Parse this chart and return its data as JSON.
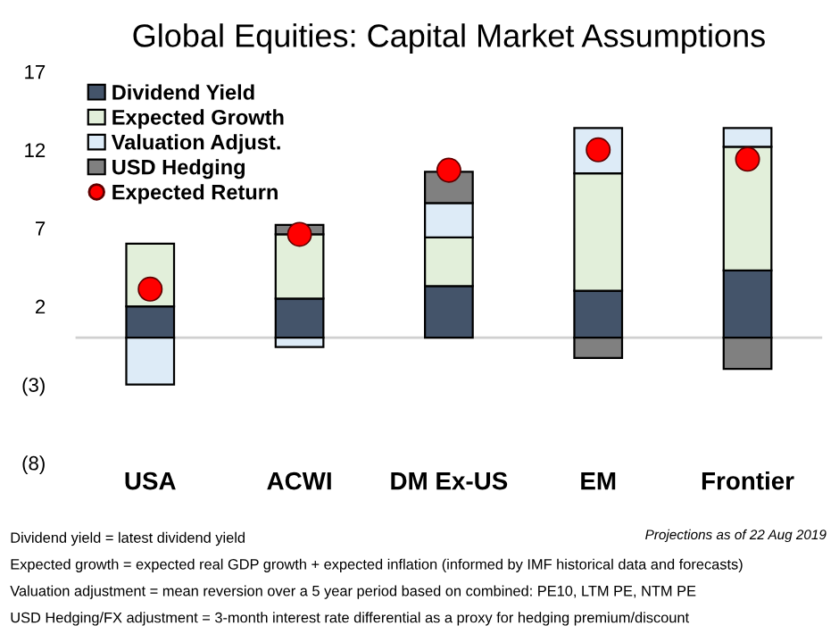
{
  "chart_data": {
    "type": "bar",
    "title": "Global Equities: Capital Market Assumptions",
    "categories": [
      "USA",
      "ACWI",
      "DM Ex-US",
      "EM",
      "Frontier"
    ],
    "stacked": true,
    "series": [
      {
        "name": "Dividend Yield",
        "color": "#44546a",
        "values": [
          2.0,
          2.5,
          3.3,
          3.0,
          4.3
        ]
      },
      {
        "name": "Expected Growth",
        "color": "#e2efda",
        "values": [
          4.0,
          4.1,
          3.1,
          7.5,
          7.9
        ]
      },
      {
        "name": "Valuation Adjust.",
        "color": "#ddebf7",
        "values": [
          -3.0,
          -0.6,
          2.2,
          2.9,
          1.2
        ]
      },
      {
        "name": "USD Hedging",
        "color": "#808080",
        "values": [
          null,
          0.6,
          2.0,
          -1.3,
          -2.0
        ]
      },
      {
        "name": "Expected Return",
        "type": "scatter",
        "color": "#ff0000",
        "x": [
          "USA",
          "ACWI",
          "DM Ex-US",
          "EM",
          "Frontier"
        ],
        "values": [
          3.1,
          6.6,
          10.7,
          12.0,
          11.4
        ]
      }
    ],
    "ylim": [
      -8,
      17
    ],
    "yticks": [
      {
        "value": -8,
        "label": "(8)"
      },
      {
        "value": -3,
        "label": "(3)"
      },
      2,
      7,
      12,
      17
    ],
    "ref_lines": [
      {
        "axis": "y",
        "value": 0,
        "label": null,
        "color": "#d0d0d0"
      }
    ],
    "grid": false,
    "legend": "top left",
    "annotations": [
      "Dividend yield = latest dividend yield",
      "Projections as of 22 Aug 2019",
      "Expected growth = expected real GDP growth + expected inflation (informed by IMF historical data and forecasts)",
      "Valuation adjustment = mean reversion over a 5 year period based on combined: PE10, LTM PE, NTM PE",
      "USD Hedging/FX adjustment = 3-month interest rate differential as a proxy for hedging premium/discount"
    ]
  }
}
